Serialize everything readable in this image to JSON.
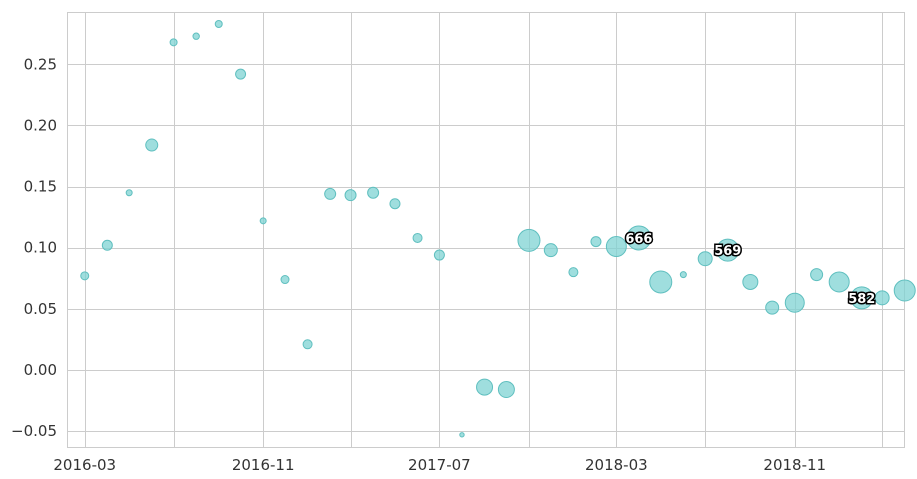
{
  "chart_data": {
    "type": "scatter",
    "title": "",
    "xlabel": "",
    "ylabel": "",
    "x_axis": {
      "type": "date",
      "range": [
        "2016-02-07",
        "2019-03-31"
      ],
      "tick_labels": [
        "2016-03",
        "2016-11",
        "2017-07",
        "2018-03",
        "2018-11"
      ],
      "tick_dates": [
        "2016-03-01",
        "2016-11-01",
        "2017-07-01",
        "2018-03-01",
        "2018-11-01"
      ],
      "minor_gridlines": [
        "2016-07-01",
        "2017-03-01",
        "2017-11-01",
        "2018-07-01",
        "2019-03-01"
      ]
    },
    "ylim": [
      -0.063,
      0.292
    ],
    "y_ticks": [
      -0.05,
      0.0,
      0.05,
      0.1,
      0.15,
      0.2,
      0.25
    ],
    "y_tick_labels": [
      "−0.05",
      "0.00",
      "0.05",
      "0.10",
      "0.15",
      "0.20",
      "0.25"
    ],
    "grid": true,
    "marker_color": "#7fd3d3",
    "marker_edge_color": "#5fbfbf",
    "points": [
      {
        "x": "2016-03-01",
        "y": 0.077,
        "size": 4
      },
      {
        "x": "2016-04-01",
        "y": 0.102,
        "size": 5
      },
      {
        "x": "2016-05-01",
        "y": 0.145,
        "size": 3
      },
      {
        "x": "2016-06-01",
        "y": 0.184,
        "size": 6
      },
      {
        "x": "2016-07-01",
        "y": 0.268,
        "size": 3.5
      },
      {
        "x": "2016-08-01",
        "y": 0.273,
        "size": 3.2
      },
      {
        "x": "2016-09-01",
        "y": 0.283,
        "size": 3.5
      },
      {
        "x": "2016-10-01",
        "y": 0.242,
        "size": 5
      },
      {
        "x": "2016-11-01",
        "y": 0.122,
        "size": 3
      },
      {
        "x": "2016-12-01",
        "y": 0.074,
        "size": 4
      },
      {
        "x": "2017-01-01",
        "y": 0.021,
        "size": 4.5
      },
      {
        "x": "2017-02-01",
        "y": 0.144,
        "size": 5.5
      },
      {
        "x": "2017-03-01",
        "y": 0.143,
        "size": 5.5
      },
      {
        "x": "2017-04-01",
        "y": 0.145,
        "size": 5.5
      },
      {
        "x": "2017-05-01",
        "y": 0.136,
        "size": 5
      },
      {
        "x": "2017-06-01",
        "y": 0.108,
        "size": 4.5
      },
      {
        "x": "2017-07-01",
        "y": 0.094,
        "size": 5
      },
      {
        "x": "2017-08-01",
        "y": -0.053,
        "size": 2.2
      },
      {
        "x": "2017-09-01",
        "y": -0.014,
        "size": 8
      },
      {
        "x": "2017-10-01",
        "y": -0.016,
        "size": 8
      },
      {
        "x": "2017-11-01",
        "y": 0.106,
        "size": 11
      },
      {
        "x": "2017-12-01",
        "y": 0.098,
        "size": 6.5
      },
      {
        "x": "2018-01-01",
        "y": 0.08,
        "size": 4.5
      },
      {
        "x": "2018-02-01",
        "y": 0.105,
        "size": 5
      },
      {
        "x": "2018-03-01",
        "y": 0.101,
        "size": 10
      },
      {
        "x": "2018-04-01",
        "y": 0.108,
        "size": 12,
        "label": "666"
      },
      {
        "x": "2018-05-01",
        "y": 0.072,
        "size": 11
      },
      {
        "x": "2018-06-01",
        "y": 0.078,
        "size": 3
      },
      {
        "x": "2018-07-01",
        "y": 0.091,
        "size": 7
      },
      {
        "x": "2018-08-01",
        "y": 0.098,
        "size": 11,
        "label": "569"
      },
      {
        "x": "2018-09-01",
        "y": 0.072,
        "size": 7.5
      },
      {
        "x": "2018-10-01",
        "y": 0.051,
        "size": 6.5
      },
      {
        "x": "2018-11-01",
        "y": 0.055,
        "size": 9.5
      },
      {
        "x": "2018-12-01",
        "y": 0.078,
        "size": 6
      },
      {
        "x": "2019-01-01",
        "y": 0.072,
        "size": 10
      },
      {
        "x": "2019-02-01",
        "y": 0.059,
        "size": 11,
        "label": "582"
      },
      {
        "x": "2019-03-01",
        "y": 0.059,
        "size": 7
      },
      {
        "x": "2019-04-01",
        "y": 0.065,
        "size": 10.5
      }
    ]
  }
}
